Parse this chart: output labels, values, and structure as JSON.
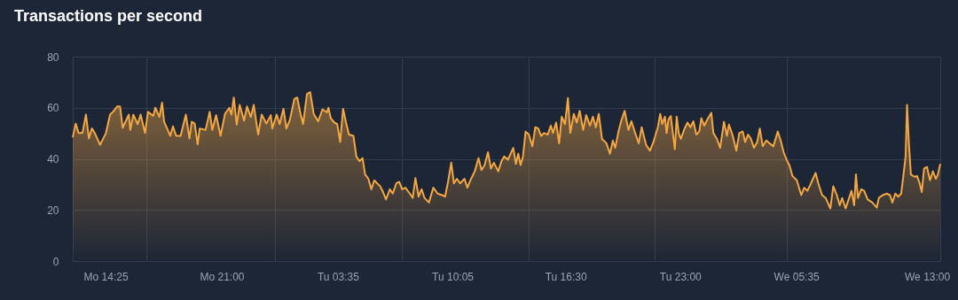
{
  "chart_data": {
    "type": "area",
    "title": "Transactions per second",
    "x": [
      "--01-01T12:33",
      "--01-01T12:43",
      "--01-01T12:53",
      "--01-01T13:06",
      "--01-01T13:18",
      "--01-01T13:28",
      "--01-01T13:38",
      "--01-01T13:48",
      "--01-01T14:06",
      "--01-01T14:26",
      "--01-01T14:40",
      "--01-01T14:50",
      "--01-01T15:04",
      "--01-01T15:14",
      "--01-01T15:23",
      "--01-01T15:44",
      "--01-01T15:49",
      "--01-01T15:59",
      "--01-01T16:14",
      "--01-01T16:24",
      "--01-01T16:39",
      "--01-01T16:49",
      "--01-01T17:07",
      "--01-01T17:14",
      "--01-01T17:28",
      "--01-01T17:37",
      "--01-01T17:44",
      "--01-01T18:05",
      "--01-01T18:14",
      "--01-01T18:25",
      "--01-01T18:40",
      "--01-01T18:58",
      "--01-01T19:10",
      "--01-01T19:18",
      "--01-01T19:28",
      "--01-01T19:38",
      "--01-01T19:45",
      "--01-01T20:05",
      "--01-01T20:19",
      "--01-01T20:28",
      "--01-01T20:41",
      "--01-01T20:56",
      "--01-01T21:11",
      "--01-01T21:26",
      "--01-01T21:33",
      "--01-01T21:41",
      "--01-01T21:51",
      "--01-01T22:01",
      "--01-01T22:16",
      "--01-01T22:26",
      "--01-01T22:39",
      "--01-01T22:49",
      "--01-01T23:04",
      "--01-01T23:16",
      "--01-01T23:32",
      "--01-01T23:47",
      "--01-01T23:52",
      "--01-02T00:07",
      "--01-02T00:17",
      "--01-02T00:30",
      "--01-02T00:40",
      "--01-02T00:52",
      "--01-02T01:07",
      "--01-02T01:17",
      "--01-02T01:27",
      "--01-02T01:37",
      "--01-02T01:50",
      "--01-02T02:01",
      "--01-02T02:13",
      "--01-02T02:28",
      "--01-02T02:43",
      "--01-02T02:58",
      "--01-02T03:03",
      "--01-02T03:11",
      "--01-02T03:23",
      "--01-02T03:33",
      "--01-02T03:43",
      "--01-02T03:53",
      "--01-02T04:03",
      "--01-02T04:13",
      "--01-02T04:28",
      "--01-02T04:38",
      "--01-02T04:49",
      "--01-02T04:59",
      "--01-02T05:08",
      "--01-02T05:19",
      "--01-02T05:29",
      "--01-02T05:39",
      "--01-02T05:49",
      "--01-02T05:59",
      "--01-02T06:09",
      "--01-02T06:19",
      "--01-02T06:32",
      "--01-02T06:42",
      "--01-02T06:54",
      "--01-02T07:04",
      "--01-02T07:14",
      "--01-02T07:25",
      "--01-02T07:40",
      "--01-02T07:50",
      "--01-02T07:59",
      "--01-02T08:10",
      "--01-02T08:20",
      "--01-02T08:30",
      "--01-02T08:45",
      "--01-02T09:00",
      "--01-02T09:15",
      "--01-02T09:30",
      "--01-02T09:40",
      "--01-02T09:50",
      "--01-02T10:01",
      "--01-02T10:10",
      "--01-02T10:20",
      "--01-02T10:31",
      "--01-02T10:46",
      "--01-02T10:56",
      "--01-02T11:06",
      "--01-02T11:21",
      "--01-02T11:34",
      "--01-02T11:44",
      "--01-02T11:54",
      "--01-02T12:06",
      "--01-02T12:16",
      "--01-02T12:26",
      "--01-02T12:41",
      "--01-02T12:52",
      "--01-02T13:01",
      "--01-02T13:14",
      "--01-02T13:32",
      "--01-02T13:41",
      "--01-02T13:49",
      "--01-02T13:57",
      "--01-02T14:05",
      "--01-02T14:14",
      "--01-02T14:25",
      "--01-02T14:37",
      "--01-02T14:47",
      "--01-02T14:57",
      "--01-02T15:07",
      "--01-02T15:17",
      "--01-02T15:29",
      "--01-02T15:40",
      "--01-02T15:47",
      "--01-02T15:58",
      "--01-02T16:08",
      "--01-02T16:17",
      "--01-02T16:28",
      "--01-02T16:38",
      "--01-02T16:46",
      "--01-02T16:58",
      "--01-02T17:08",
      "--01-02T17:18",
      "--01-02T17:30",
      "--01-02T17:40",
      "--01-02T17:53",
      "--01-02T18:03",
      "--01-02T18:13",
      "--01-02T18:23",
      "--01-02T18:34",
      "--01-02T18:49",
      "--01-02T19:01",
      "--01-02T19:11",
      "--01-02T19:19",
      "--01-02T19:29",
      "--01-02T19:39",
      "--01-02T19:51",
      "--01-02T20:04",
      "--01-02T20:14",
      "--01-02T20:27",
      "--01-02T20:39",
      "--01-02T20:49",
      "--01-02T21:04",
      "--01-02T21:17",
      "--01-02T21:29",
      "--01-02T21:44",
      "--01-02T21:52",
      "--01-02T21:59",
      "--01-02T22:08",
      "--01-02T22:14",
      "--01-02T22:20",
      "--01-02T22:28",
      "--01-02T22:35",
      "--01-02T22:42",
      "--01-02T22:48",
      "--01-02T22:55",
      "--01-02T23:02",
      "--01-02T23:15",
      "--01-02T23:25",
      "--01-02T23:35",
      "--01-02T23:45",
      "--01-02T23:55",
      "--01-03T00:05",
      "--01-03T00:12",
      "--01-03T00:22",
      "--01-03T00:32",
      "--01-03T00:46",
      "--01-03T00:53",
      "--01-03T01:05",
      "--01-03T01:16",
      "--01-03T01:29",
      "--01-03T01:39",
      "--01-03T01:46",
      "--01-03T01:59",
      "--01-03T02:11",
      "--01-03T02:21",
      "--01-03T02:33",
      "--01-03T02:41",
      "--01-03T02:51",
      "--01-03T03:01",
      "--01-03T03:11",
      "--01-03T03:22",
      "--01-03T03:31",
      "--01-03T03:41",
      "--01-03T03:53",
      "--01-03T04:04",
      "--01-03T04:17",
      "--01-03T04:32",
      "--01-03T04:42",
      "--01-03T04:52",
      "--01-03T05:02",
      "--01-03T05:12",
      "--01-03T05:22",
      "--01-03T05:37",
      "--01-03T05:52",
      "--01-03T06:02",
      "--01-03T06:13",
      "--01-03T06:23",
      "--01-03T06:32",
      "--01-03T06:41",
      "--01-03T06:50",
      "--01-03T07:03",
      "--01-03T07:15",
      "--01-03T07:31",
      "--01-03T07:41",
      "--01-03T07:53",
      "--01-03T08:03",
      "--01-03T08:11",
      "--01-03T08:23",
      "--01-03T08:35",
      "--01-03T08:43",
      "--01-03T08:52",
      "--01-03T08:58",
      "--01-03T09:05",
      "--01-03T09:16",
      "--01-03T09:26",
      "--01-03T09:38",
      "--01-03T09:54",
      "--01-03T10:09",
      "--01-03T10:16",
      "--01-03T10:29",
      "--01-03T10:44",
      "--01-03T10:54",
      "--01-03T11:02",
      "--01-03T11:12",
      "--01-03T11:22",
      "--01-03T11:32",
      "--01-03T11:40",
      "--01-03T11:47",
      "--01-03T11:52",
      "--01-03T11:58",
      "--01-03T12:05",
      "--01-03T12:17",
      "--01-03T12:26",
      "--01-03T12:35",
      "--01-03T12:42",
      "--01-03T12:50",
      "--01-03T13:00",
      "--01-03T13:10",
      "--01-03T13:20",
      "--01-03T13:30",
      "--01-03T13:37",
      "--01-03T13:45"
    ],
    "series": [
      {
        "color": "#f5a742",
        "values": [
          48.4,
          53.8,
          50.1,
          50.1,
          57.3,
          48.0,
          51.9,
          50.1,
          45.5,
          50.1,
          57.3,
          58.4,
          60.5,
          60.5,
          52.2,
          57.3,
          51.3,
          57.3,
          53.6,
          57.3,
          50.1,
          58.4,
          56.8,
          60.0,
          56.4,
          62.0,
          54.5,
          49.0,
          52.7,
          49.0,
          49.0,
          57.3,
          48.0,
          54.5,
          53.8,
          45.7,
          51.9,
          51.3,
          58.4,
          51.3,
          57.1,
          49.0,
          57.6,
          60.0,
          57.3,
          64.0,
          53.4,
          61.1,
          55.0,
          60.5,
          56.4,
          61.1,
          49.5,
          57.3,
          53.8,
          57.1,
          51.9,
          57.3,
          53.6,
          59.6,
          51.9,
          55.3,
          63.4,
          64.0,
          58.2,
          53.6,
          65.4,
          66.1,
          57.6,
          54.7,
          59.4,
          58.2,
          60.0,
          55.9,
          54.2,
          53.6,
          46.6,
          59.6,
          54.2,
          49.5,
          49.0,
          40.9,
          39.1,
          40.3,
          33.9,
          32.2,
          28.1,
          31.6,
          30.4,
          29.3,
          27.0,
          24.1,
          28.1,
          26.4,
          30.4,
          31.0,
          28.1,
          28.7,
          26.4,
          24.7,
          32.5,
          25.2,
          28.1,
          24.7,
          22.9,
          28.7,
          26.4,
          25.8,
          25.2,
          31.0,
          38.5,
          30.4,
          32.2,
          30.4,
          32.2,
          28.7,
          31.6,
          35.1,
          40.3,
          35.6,
          37.4,
          42.6,
          36.2,
          38.5,
          35.1,
          39.1,
          40.9,
          39.7,
          44.3,
          38.0,
          42.0,
          37.6,
          40.9,
          50.7,
          49.5,
          44.9,
          52.4,
          51.9,
          49.0,
          50.1,
          49.5,
          53.0,
          50.1,
          54.2,
          46.1,
          56.5,
          53.6,
          63.8,
          50.1,
          57.6,
          54.2,
          58.8,
          51.3,
          57.1,
          53.0,
          56.5,
          52.4,
          57.6,
          47.8,
          46.1,
          42.0,
          47.2,
          44.3,
          50.1,
          54.7,
          58.8,
          51.3,
          54.7,
          50.1,
          46.1,
          52.4,
          45.5,
          43.2,
          46.6,
          52.4,
          57.6,
          53.6,
          56.5,
          50.1,
          55.3,
          56.8,
          50.1,
          43.8,
          56.5,
          50.1,
          47.8,
          51.9,
          54.2,
          52.4,
          54.7,
          49.5,
          50.7,
          55.9,
          53.0,
          55.3,
          58.0,
          50.1,
          47.8,
          44.3,
          54.5,
          49.0,
          53.4,
          49.0,
          43.2,
          50.1,
          50.7,
          46.6,
          49.5,
          47.8,
          44.3,
          46.6,
          51.9,
          44.9,
          47.2,
          46.1,
          44.9,
          50.7,
          47.2,
          42.6,
          39.7,
          37.4,
          33.3,
          31.6,
          25.8,
          28.7,
          27.5,
          29.9,
          32.2,
          34.5,
          30.4,
          25.8,
          24.7,
          20.6,
          29.3,
          25.8,
          21.8,
          24.7,
          20.6,
          24.7,
          27.5,
          21.8,
          33.9,
          24.7,
          28.1,
          27.5,
          24.1,
          22.9,
          20.9,
          24.7,
          25.8,
          26.4,
          25.8,
          22.9,
          26.4,
          25.2,
          26.4,
          33.9,
          40.9,
          61.1,
          46.6,
          33.9,
          33.0,
          33.3,
          30.4,
          27.0,
          36.2,
          36.8,
          31.6,
          35.1,
          32.2,
          33.9,
          38.0
        ]
      }
    ],
    "xlim": [
      "--01-01T12:33",
      "--01-03T13:45"
    ],
    "xticks": [
      {
        "value": "--01-01T14:25",
        "label": "Mo 14:25"
      },
      {
        "value": "--01-01T16:44",
        "label": null
      },
      {
        "value": "--01-01T21:00",
        "label": "Mo 21:00"
      },
      {
        "value": "--01-02T00:02",
        "label": null
      },
      {
        "value": "--01-02T03:35",
        "label": "Tu 03:35"
      },
      {
        "value": "--01-02T07:13",
        "label": null
      },
      {
        "value": "--01-02T10:05",
        "label": "Tu 10:05"
      },
      {
        "value": "--01-02T14:25",
        "label": null
      },
      {
        "value": "--01-02T16:30",
        "label": "Tu 16:30"
      },
      {
        "value": "--01-02T21:34",
        "label": null
      },
      {
        "value": "--01-02T23:00",
        "label": "Tu 23:00"
      },
      {
        "value": "--01-03T05:02",
        "label": null
      },
      {
        "value": "--01-03T05:35",
        "label": "We 05:35"
      },
      {
        "value": "--01-03T13:00",
        "label": "We 13:00"
      }
    ],
    "ylim": [
      0,
      80
    ],
    "yticks": [
      0,
      20,
      40,
      60,
      80
    ],
    "grid": true
  }
}
